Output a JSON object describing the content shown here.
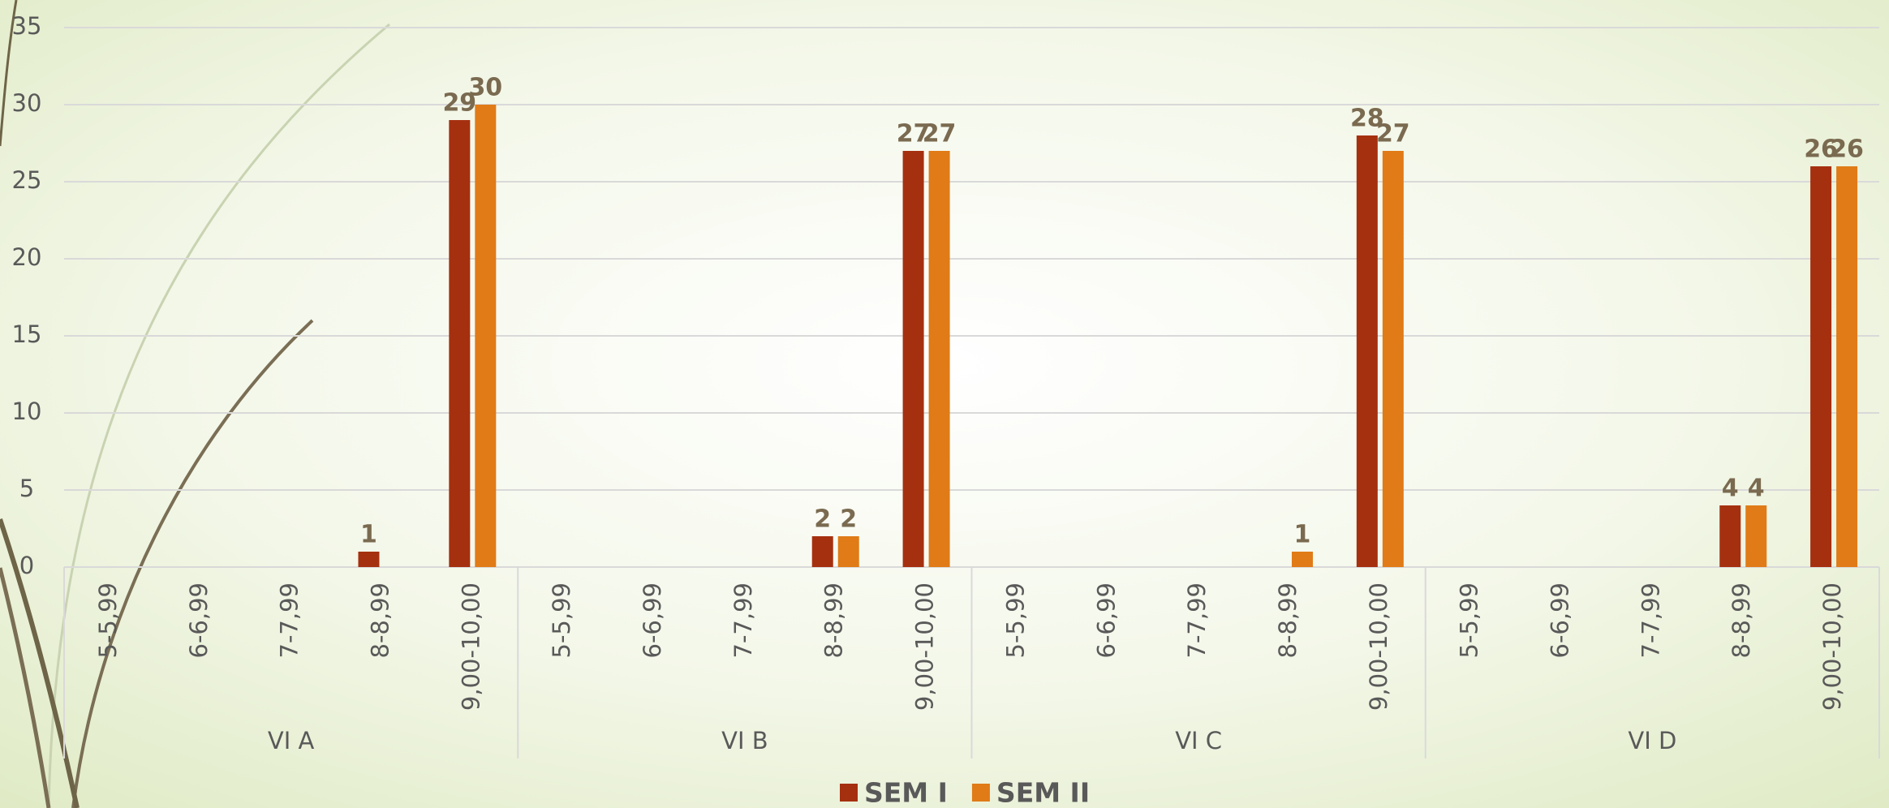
{
  "chart_data": {
    "type": "bar",
    "categories": [
      "5-5,99",
      "6-6,99",
      "7-7,99",
      "8-8,99",
      "9,00-10,00",
      "5-5,99",
      "6-6,99",
      "7-7,99",
      "8-8,99",
      "9,00-10,00",
      "5-5,99",
      "6-6,99",
      "7-7,99",
      "8-8,99",
      "9,00-10,00",
      "5-5,99",
      "6-6,99",
      "7-7,99",
      "8-8,99",
      "9,00-10,00"
    ],
    "groups": [
      "VI A",
      "VI B",
      "VI C",
      "VI D"
    ],
    "series": [
      {
        "name": "SEM I",
        "color": "#a5300f",
        "values": [
          null,
          null,
          null,
          1,
          29,
          null,
          null,
          null,
          2,
          27,
          null,
          null,
          null,
          null,
          28,
          null,
          null,
          null,
          4,
          26
        ]
      },
      {
        "name": "SEM II",
        "color": "#e07b17",
        "values": [
          null,
          null,
          null,
          null,
          30,
          null,
          null,
          null,
          2,
          27,
          null,
          null,
          null,
          1,
          27,
          null,
          null,
          null,
          4,
          26
        ]
      }
    ],
    "ylim": [
      0,
      35
    ],
    "yticks": [
      0,
      5,
      10,
      15,
      20,
      25,
      30,
      35
    ],
    "grid": true
  }
}
